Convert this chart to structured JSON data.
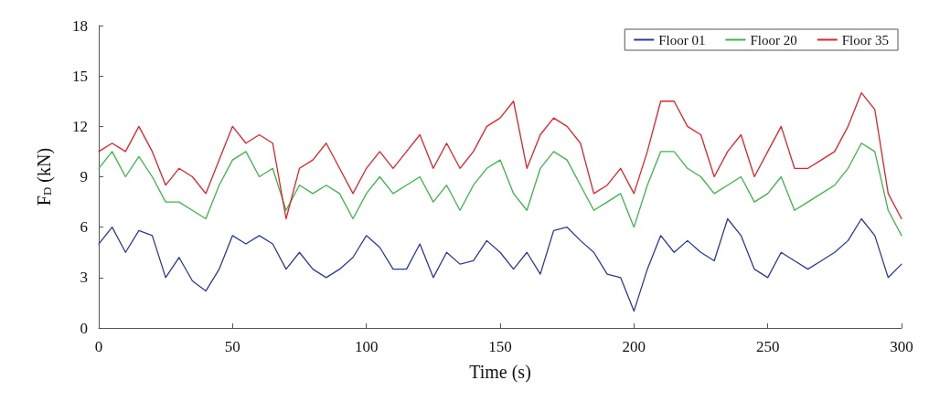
{
  "chart_data": {
    "type": "line",
    "xlabel": "Time (s)",
    "ylabel": "F$_{D}$ (kN)",
    "x": [
      0,
      5,
      10,
      15,
      20,
      25,
      30,
      35,
      40,
      45,
      50,
      55,
      60,
      65,
      70,
      75,
      80,
      85,
      90,
      95,
      100,
      105,
      110,
      115,
      120,
      125,
      130,
      135,
      140,
      145,
      150,
      155,
      160,
      165,
      170,
      175,
      180,
      185,
      190,
      195,
      200,
      205,
      210,
      215,
      220,
      225,
      230,
      235,
      240,
      245,
      250,
      255,
      260,
      265,
      270,
      275,
      280,
      285,
      290,
      295,
      300
    ],
    "series": [
      {
        "name": "Floor 01",
        "color": "#2b3a9a",
        "values": [
          5.0,
          6.0,
          4.5,
          5.8,
          5.5,
          3.0,
          4.2,
          2.8,
          2.2,
          3.5,
          5.5,
          5.0,
          5.5,
          5.0,
          3.5,
          4.5,
          3.5,
          3.0,
          3.5,
          4.2,
          5.5,
          4.8,
          3.5,
          3.5,
          5.0,
          3.0,
          4.5,
          3.8,
          4.0,
          5.2,
          4.5,
          3.5,
          4.5,
          3.2,
          5.8,
          6.0,
          5.2,
          4.5,
          3.2,
          3.0,
          1.0,
          3.5,
          5.5,
          4.5,
          5.2,
          4.5,
          4.0,
          6.5,
          5.5,
          3.5,
          3.0,
          4.5,
          4.0,
          3.5,
          4.0,
          4.5,
          5.2,
          6.5,
          5.5,
          3.0,
          3.8
        ]
      },
      {
        "name": "Floor 20",
        "color": "#3cb54a",
        "values": [
          9.5,
          10.5,
          9.0,
          10.2,
          9.0,
          7.5,
          7.5,
          7.0,
          6.5,
          8.5,
          10.0,
          10.5,
          9.0,
          9.5,
          7.0,
          8.5,
          8.0,
          8.5,
          8.0,
          6.5,
          8.0,
          9.0,
          8.0,
          8.5,
          9.0,
          7.5,
          8.5,
          7.0,
          8.5,
          9.5,
          10.0,
          8.0,
          7.0,
          9.5,
          10.5,
          10.0,
          8.5,
          7.0,
          7.5,
          8.0,
          6.0,
          8.5,
          10.5,
          10.5,
          9.5,
          9.0,
          8.0,
          8.5,
          9.0,
          7.5,
          8.0,
          9.0,
          7.0,
          7.5,
          8.0,
          8.5,
          9.5,
          11.0,
          10.5,
          7.0,
          5.5
        ]
      },
      {
        "name": "Floor 35",
        "color": "#e4222a",
        "values": [
          10.5,
          11.0,
          10.5,
          12.0,
          10.5,
          8.5,
          9.5,
          9.0,
          8.0,
          10.0,
          12.0,
          11.0,
          11.5,
          11.0,
          6.5,
          9.5,
          10.0,
          11.0,
          9.5,
          8.0,
          9.5,
          10.5,
          9.5,
          10.5,
          11.5,
          9.5,
          11.0,
          9.5,
          10.5,
          12.0,
          12.5,
          13.5,
          9.5,
          11.5,
          12.5,
          12.0,
          11.0,
          8.0,
          8.5,
          9.5,
          8.0,
          10.5,
          13.5,
          13.5,
          12.0,
          11.5,
          9.0,
          10.5,
          11.5,
          9.0,
          10.5,
          12.0,
          9.5,
          9.5,
          10.0,
          10.5,
          12.0,
          14.0,
          13.0,
          8.0,
          6.5
        ]
      }
    ],
    "xlim": [
      0,
      300
    ],
    "xticks": [
      0,
      50,
      100,
      150,
      200,
      250,
      300
    ],
    "ylim": [
      0,
      18
    ],
    "yticks": [
      0,
      3,
      6,
      9,
      12,
      15,
      18
    ],
    "grid": false,
    "legend": "top right",
    "marker": "none",
    "line_style": "solid"
  }
}
